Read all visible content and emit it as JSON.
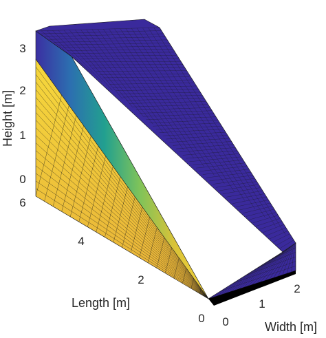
{
  "chart_data": {
    "type": "surface3d",
    "title": "",
    "axes": {
      "z": {
        "label": "Height [m]",
        "ticks": [
          0,
          1,
          2,
          3
        ]
      },
      "y": {
        "label": "Length [m]",
        "ticks": [
          6,
          4,
          2,
          0
        ]
      },
      "x": {
        "label": "Width [m]",
        "ticks": [
          0,
          1,
          2
        ]
      }
    },
    "grid": false,
    "colormap": "parula",
    "colors": {
      "top": "#3a2a9c",
      "top_dark": "#2a1f7a",
      "side_gradient": [
        "#3b2fa2",
        "#2c6fb0",
        "#22a08f",
        "#7ec35a",
        "#d9c338",
        "#f4d23a"
      ],
      "face_gradient": [
        "#f6d83c",
        "#efc43a",
        "#e7b038"
      ],
      "mesh": "#1a1a1a",
      "bottom": "#000000"
    }
  }
}
